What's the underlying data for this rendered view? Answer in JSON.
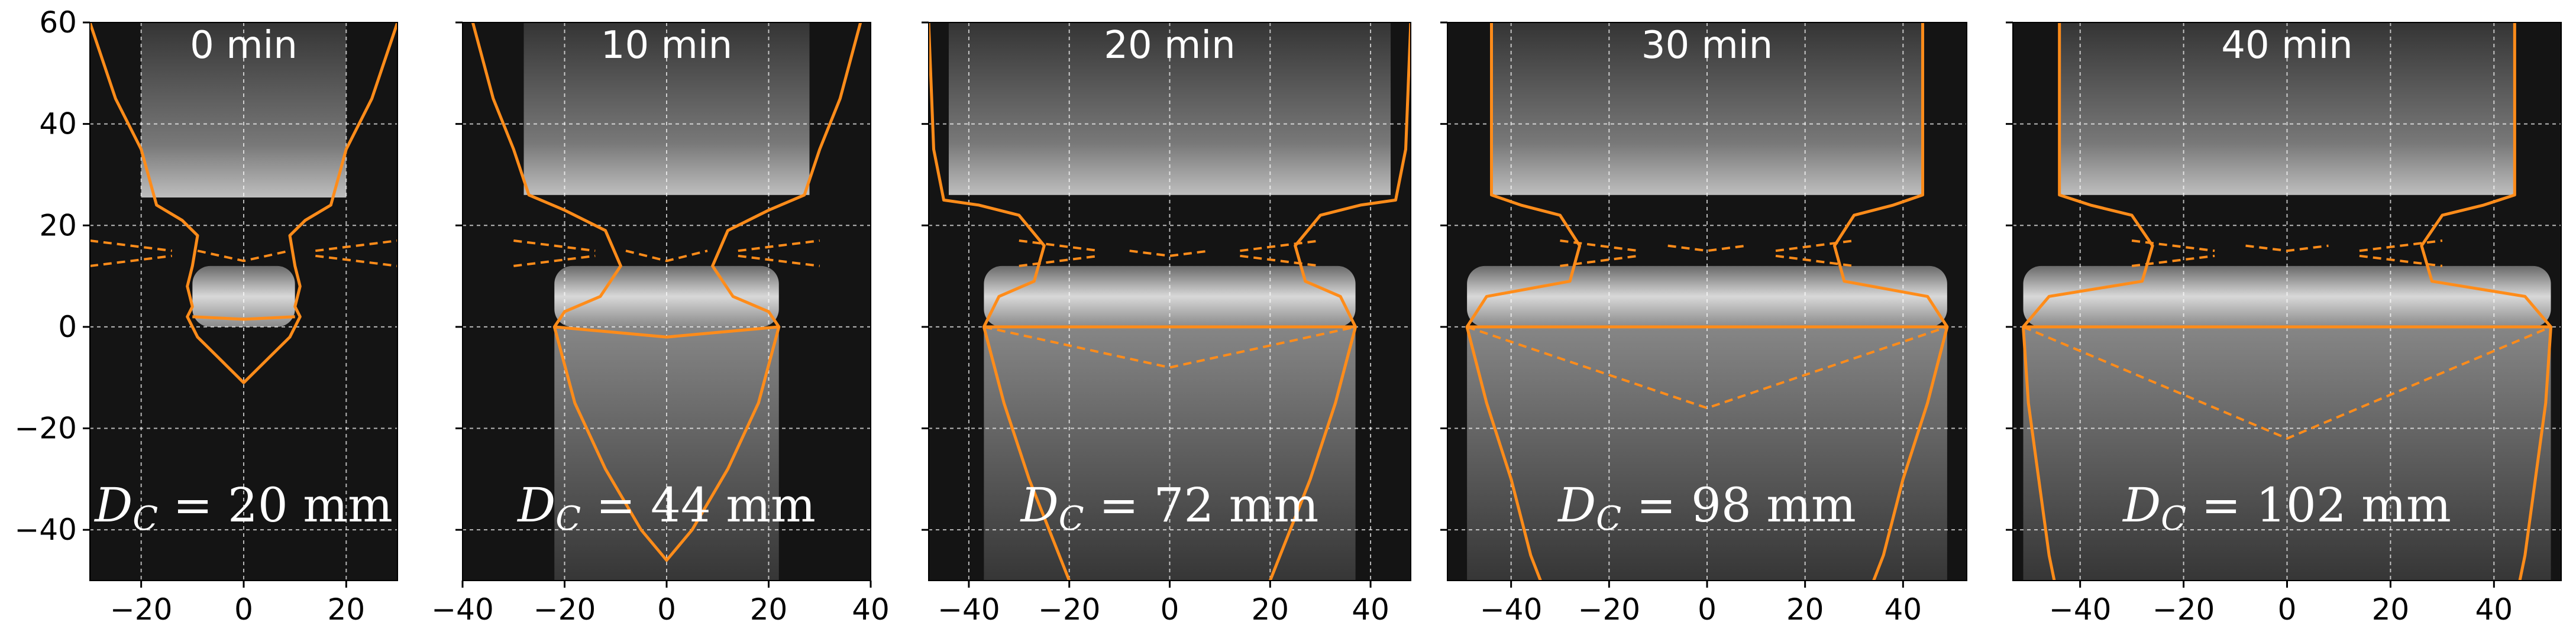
{
  "figure": {
    "curve_color": "#ff8c1a",
    "background_color": "#141414"
  },
  "chart_data": [
    {
      "type": "image-overlay",
      "time_label": "0 min",
      "dc_label": "D_C = 20 mm",
      "xlim": [
        -30,
        30
      ],
      "ylim": [
        -50,
        60
      ],
      "xticks": [
        -20,
        0,
        20
      ],
      "yticks": [
        -40,
        -20,
        0,
        20,
        40,
        60
      ],
      "show_y_tick_labels": true,
      "grid": true,
      "crucible_bottom_y": 25.5,
      "melt_top_y": 12,
      "melt_bottom_y": 0,
      "melt_half_width": 10,
      "solid_curves": {
        "outer_crucible": [
          [
            -30,
            60
          ],
          [
            -25,
            45
          ],
          [
            -20,
            35
          ],
          [
            -17,
            24
          ],
          [
            -12,
            21
          ],
          [
            -9,
            18
          ],
          [
            -10,
            12
          ],
          [
            -11,
            8
          ],
          [
            -10,
            4
          ],
          [
            -11,
            2
          ],
          [
            -9,
            -2
          ],
          [
            -5,
            -6
          ],
          [
            0,
            -11
          ],
          [
            5,
            -6
          ],
          [
            9,
            -2
          ],
          [
            11,
            2
          ],
          [
            10,
            4
          ],
          [
            11,
            8
          ],
          [
            10,
            12
          ],
          [
            9,
            18
          ],
          [
            12,
            21
          ],
          [
            17,
            24
          ],
          [
            20,
            35
          ],
          [
            25,
            45
          ],
          [
            30,
            60
          ]
        ],
        "interface": [
          [
            -10,
            2
          ],
          [
            0,
            1.5
          ],
          [
            10,
            2
          ]
        ]
      },
      "dashed_curves": {
        "left_a": [
          [
            -30,
            17
          ],
          [
            -14,
            15
          ]
        ],
        "left_b": [
          [
            -30,
            12
          ],
          [
            -14,
            14
          ]
        ],
        "right_a": [
          [
            14,
            15
          ],
          [
            30,
            17
          ]
        ],
        "right_b": [
          [
            14,
            14
          ],
          [
            30,
            12
          ]
        ],
        "center": [
          [
            -9,
            15
          ],
          [
            0,
            13
          ],
          [
            9,
            15
          ]
        ]
      }
    },
    {
      "type": "image-overlay",
      "time_label": "10 min",
      "dc_label": "D_C = 44 mm",
      "xlim": [
        -40,
        40
      ],
      "ylim": [
        -50,
        60
      ],
      "xticks": [
        -40,
        -20,
        0,
        20,
        40
      ],
      "yticks": [
        -40,
        -20,
        0,
        20,
        40,
        60
      ],
      "show_y_tick_labels": false,
      "grid": true,
      "crucible_bottom_y": 26,
      "melt_top_y": 12,
      "melt_bottom_y": 0,
      "melt_half_width": 22,
      "solid_curves": {
        "outer_crucible": [
          [
            -38,
            60
          ],
          [
            -34,
            45
          ],
          [
            -30,
            35
          ],
          [
            -27,
            26
          ],
          [
            -20,
            23
          ],
          [
            -12,
            19
          ],
          [
            -9,
            12
          ],
          [
            -13,
            6
          ],
          [
            -20,
            3
          ],
          [
            -22,
            0
          ],
          [
            -18,
            -15
          ],
          [
            -12,
            -28
          ],
          [
            -5,
            -40
          ],
          [
            0,
            -46
          ],
          [
            5,
            -40
          ],
          [
            12,
            -28
          ],
          [
            18,
            -15
          ],
          [
            22,
            0
          ],
          [
            20,
            3
          ],
          [
            13,
            6
          ],
          [
            9,
            12
          ],
          [
            12,
            19
          ],
          [
            20,
            23
          ],
          [
            27,
            26
          ],
          [
            30,
            35
          ],
          [
            34,
            45
          ],
          [
            38,
            60
          ]
        ],
        "interface": [
          [
            -22,
            0
          ],
          [
            0,
            -2
          ],
          [
            22,
            0
          ]
        ]
      },
      "dashed_curves": {
        "left_a": [
          [
            -30,
            17
          ],
          [
            -14,
            15
          ]
        ],
        "left_b": [
          [
            -30,
            12
          ],
          [
            -14,
            14
          ]
        ],
        "right_a": [
          [
            14,
            15
          ],
          [
            30,
            17
          ]
        ],
        "right_b": [
          [
            14,
            14
          ],
          [
            30,
            12
          ]
        ],
        "center": [
          [
            -8,
            15
          ],
          [
            0,
            13
          ],
          [
            8,
            15
          ]
        ]
      }
    },
    {
      "type": "image-overlay",
      "time_label": "20 min",
      "dc_label": "D_C = 72 mm",
      "xlim": [
        -48,
        48
      ],
      "ylim": [
        -50,
        60
      ],
      "xticks": [
        -40,
        -20,
        0,
        20,
        40
      ],
      "yticks": [
        -40,
        -20,
        0,
        20,
        40,
        60
      ],
      "show_y_tick_labels": false,
      "grid": true,
      "crucible_bottom_y": 26,
      "melt_top_y": 12,
      "melt_bottom_y": 0,
      "melt_half_width": 37,
      "solid_curves": {
        "outer_crucible": [
          [
            -48,
            60
          ],
          [
            -47,
            35
          ],
          [
            -45,
            25
          ],
          [
            -38,
            24
          ],
          [
            -30,
            22
          ],
          [
            -25,
            16
          ],
          [
            -27,
            9
          ],
          [
            -34,
            6
          ],
          [
            -37,
            0
          ],
          [
            -33,
            -15
          ],
          [
            -28,
            -30
          ],
          [
            -22,
            -45
          ],
          [
            -20,
            -50
          ]
        ],
        "outer_crucible_right": [
          [
            48,
            60
          ],
          [
            47,
            35
          ],
          [
            45,
            25
          ],
          [
            38,
            24
          ],
          [
            30,
            22
          ],
          [
            25,
            16
          ],
          [
            27,
            9
          ],
          [
            34,
            6
          ],
          [
            37,
            0
          ],
          [
            33,
            -15
          ],
          [
            28,
            -30
          ],
          [
            22,
            -45
          ],
          [
            20,
            -50
          ]
        ],
        "interface": [
          [
            -37,
            0
          ],
          [
            0,
            0
          ],
          [
            37,
            0
          ]
        ]
      },
      "dashed_curves": {
        "left_a": [
          [
            -30,
            17
          ],
          [
            -14,
            15
          ]
        ],
        "left_b": [
          [
            -30,
            12
          ],
          [
            -14,
            14
          ]
        ],
        "right_a": [
          [
            14,
            15
          ],
          [
            30,
            17
          ]
        ],
        "right_b": [
          [
            14,
            14
          ],
          [
            30,
            12
          ]
        ],
        "center": [
          [
            -8,
            15
          ],
          [
            0,
            14
          ],
          [
            8,
            15
          ]
        ],
        "interface_curve": [
          [
            -37,
            0
          ],
          [
            0,
            -8
          ],
          [
            37,
            0
          ]
        ]
      }
    },
    {
      "type": "image-overlay",
      "time_label": "30 min",
      "dc_label": "D_C = 98 mm",
      "xlim": [
        -53,
        53
      ],
      "ylim": [
        -50,
        60
      ],
      "xticks": [
        -40,
        -20,
        0,
        20,
        40
      ],
      "yticks": [
        -40,
        -20,
        0,
        20,
        40,
        60
      ],
      "show_y_tick_labels": false,
      "grid": true,
      "crucible_bottom_y": 26,
      "melt_top_y": 12,
      "melt_bottom_y": 0,
      "melt_half_width": 49,
      "solid_curves": {
        "outer_crucible": [
          [
            -44,
            60
          ],
          [
            -44,
            26
          ],
          [
            -38,
            24
          ],
          [
            -30,
            22
          ],
          [
            -26,
            16
          ],
          [
            -28,
            9
          ],
          [
            -45,
            6
          ],
          [
            -49,
            0
          ],
          [
            -45,
            -15
          ],
          [
            -40,
            -30
          ],
          [
            -36,
            -45
          ],
          [
            -34,
            -50
          ]
        ],
        "outer_crucible_right": [
          [
            44,
            60
          ],
          [
            44,
            26
          ],
          [
            38,
            24
          ],
          [
            30,
            22
          ],
          [
            26,
            16
          ],
          [
            28,
            9
          ],
          [
            45,
            6
          ],
          [
            49,
            0
          ],
          [
            45,
            -15
          ],
          [
            40,
            -30
          ],
          [
            36,
            -45
          ],
          [
            34,
            -50
          ]
        ],
        "interface": [
          [
            -49,
            0
          ],
          [
            0,
            0
          ],
          [
            49,
            0
          ]
        ]
      },
      "dashed_curves": {
        "left_a": [
          [
            -30,
            17
          ],
          [
            -14,
            15
          ]
        ],
        "left_b": [
          [
            -30,
            12
          ],
          [
            -14,
            14
          ]
        ],
        "right_a": [
          [
            14,
            15
          ],
          [
            30,
            17
          ]
        ],
        "right_b": [
          [
            14,
            14
          ],
          [
            30,
            12
          ]
        ],
        "center": [
          [
            -8,
            16
          ],
          [
            0,
            15
          ],
          [
            8,
            16
          ]
        ],
        "interface_curve": [
          [
            -49,
            0
          ],
          [
            0,
            -16
          ],
          [
            49,
            0
          ]
        ]
      }
    },
    {
      "type": "image-overlay",
      "time_label": "40 min",
      "dc_label": "D_C = 102 mm",
      "xlim": [
        -53,
        53
      ],
      "ylim": [
        -50,
        60
      ],
      "xticks": [
        -40,
        -20,
        0,
        20,
        40
      ],
      "yticks": [
        -40,
        -20,
        0,
        20,
        40,
        60
      ],
      "show_y_tick_labels": false,
      "grid": true,
      "crucible_bottom_y": 26,
      "melt_top_y": 12,
      "melt_bottom_y": 0,
      "melt_half_width": 51,
      "solid_curves": {
        "outer_crucible": [
          [
            -44,
            60
          ],
          [
            -44,
            26
          ],
          [
            -38,
            24
          ],
          [
            -30,
            22
          ],
          [
            -26,
            16
          ],
          [
            -28,
            9
          ],
          [
            -46,
            6
          ],
          [
            -51,
            0
          ],
          [
            -50,
            -15
          ],
          [
            -48,
            -30
          ],
          [
            -46,
            -45
          ],
          [
            -45,
            -50
          ]
        ],
        "outer_crucible_right": [
          [
            44,
            60
          ],
          [
            44,
            26
          ],
          [
            38,
            24
          ],
          [
            30,
            22
          ],
          [
            26,
            16
          ],
          [
            28,
            9
          ],
          [
            46,
            6
          ],
          [
            51,
            0
          ],
          [
            50,
            -15
          ],
          [
            48,
            -30
          ],
          [
            46,
            -45
          ],
          [
            45,
            -50
          ]
        ],
        "interface": [
          [
            -51,
            0
          ],
          [
            0,
            0
          ],
          [
            51,
            0
          ]
        ]
      },
      "dashed_curves": {
        "left_a": [
          [
            -30,
            17
          ],
          [
            -14,
            15
          ]
        ],
        "left_b": [
          [
            -30,
            12
          ],
          [
            -14,
            14
          ]
        ],
        "right_a": [
          [
            14,
            15
          ],
          [
            30,
            17
          ]
        ],
        "right_b": [
          [
            14,
            14
          ],
          [
            30,
            12
          ]
        ],
        "center": [
          [
            -8,
            16
          ],
          [
            0,
            15
          ],
          [
            8,
            16
          ]
        ],
        "interface_curve": [
          [
            -51,
            0
          ],
          [
            0,
            -22
          ],
          [
            51,
            0
          ]
        ]
      }
    }
  ]
}
